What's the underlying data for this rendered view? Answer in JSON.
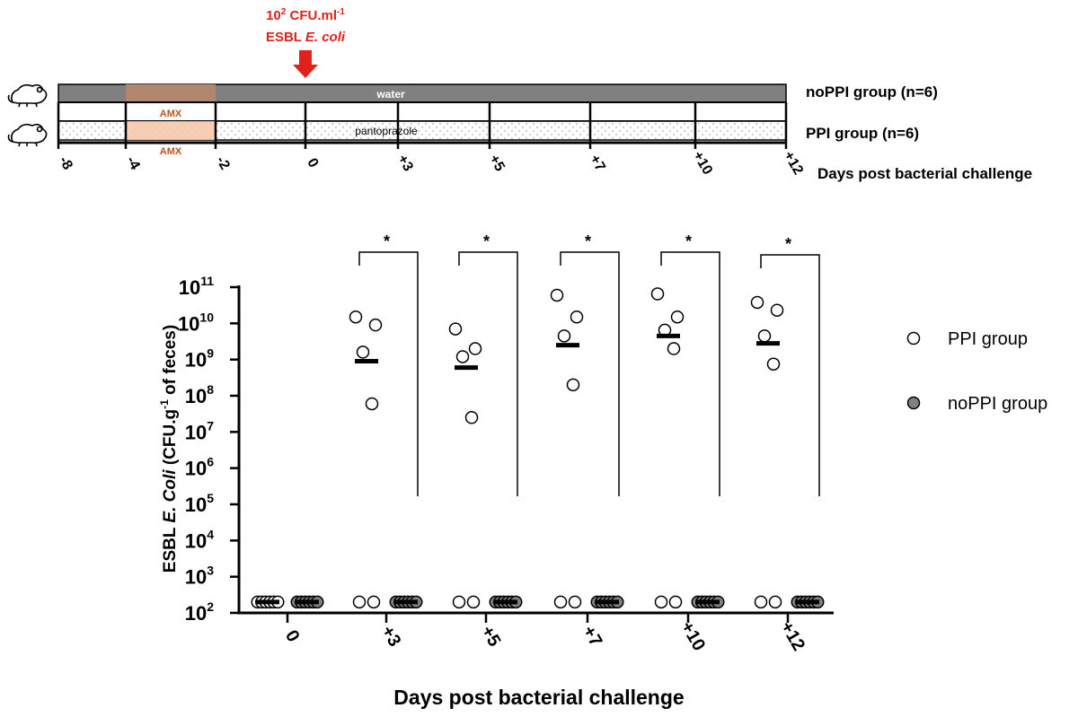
{
  "timeline": {
    "challenge_line1_base": "10",
    "challenge_line1_exp": "2",
    "challenge_line1_unit": " CFU.ml",
    "challenge_line1_unit_exp": "-1",
    "challenge_line2_a": "ESBL ",
    "challenge_line2_b": "E. coli",
    "water_label": "water",
    "pantoprazole_label": "pantoprazole",
    "amx_top": "AMX",
    "amx_bottom": "AMX",
    "group_noppi": "noPPI group (n=6)",
    "group_ppi": "PPI group (n=6)",
    "axis_title": "Days post bacterial challenge",
    "ticks": [
      "-8",
      "-4",
      "-2",
      "0",
      "+3",
      "+5",
      "+7",
      "+10",
      "+12"
    ],
    "colors": {
      "water": "#808080",
      "amx": "#f7c6a8",
      "amx_text": "#c0501c",
      "challenge": "#e2211c"
    },
    "icon": "mouse-icon"
  },
  "legend": {
    "ppi": "PPI group",
    "noppi": "noPPI group"
  },
  "chart_data": {
    "type": "scatter",
    "y_scale": "log",
    "ylim": [
      100,
      100000000000
    ],
    "y_tick_base": "10",
    "y_tick_exps": [
      "2",
      "3",
      "4",
      "5",
      "6",
      "7",
      "8",
      "9",
      "10",
      "11"
    ],
    "ylabel_a": "ESBL ",
    "ylabel_b": "E. Coli",
    "ylabel_c": " (CFU.g",
    "ylabel_exp": "-1",
    "ylabel_d": " of feces)",
    "xlabel": "Days post bacterial challenge",
    "categories": [
      "0",
      "+3",
      "+5",
      "+7",
      "+10",
      "+12"
    ],
    "significance": [
      "",
      "*",
      "*",
      "*",
      "*",
      "*"
    ],
    "series": [
      {
        "name": "PPI group",
        "fill": "#ffffff",
        "values": [
          [
            200,
            200,
            200,
            200,
            200,
            200
          ],
          [
            15000000000,
            9000000000,
            1600000000,
            60000000,
            200,
            200
          ],
          [
            7000000000,
            2000000000,
            1200000000,
            25000000,
            200,
            200
          ],
          [
            60000000000,
            15000000000,
            4500000000,
            200000000,
            200,
            200
          ],
          [
            65000000000,
            15000000000,
            6500000000,
            2000000000,
            200,
            200
          ],
          [
            38000000000,
            23000000000,
            4500000000,
            750000000,
            200,
            200
          ]
        ],
        "medians": [
          200,
          900000000,
          600000000,
          2500000000,
          4500000000,
          2800000000
        ]
      },
      {
        "name": "noPPI group",
        "fill": "#808080",
        "values": [
          [
            200,
            200,
            200,
            200,
            200,
            200
          ],
          [
            200,
            200,
            200,
            200,
            200,
            200
          ],
          [
            200,
            200,
            200,
            200,
            200,
            200
          ],
          [
            200,
            200,
            200,
            200,
            200,
            200
          ],
          [
            200,
            200,
            200,
            200,
            200,
            200
          ],
          [
            200,
            200,
            200,
            200,
            200,
            200
          ]
        ],
        "medians": [
          200,
          200,
          200,
          200,
          200,
          200
        ]
      }
    ]
  }
}
